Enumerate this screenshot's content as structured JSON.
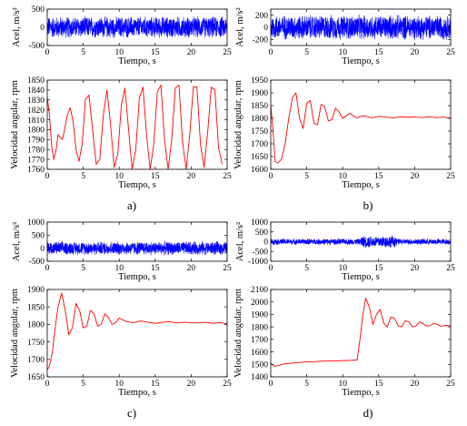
{
  "chart_data": [
    {
      "type": "line",
      "panel": "a",
      "signal": "noise",
      "xlabel": "Tiempo, s",
      "ylabel": "Acel, m/s²",
      "xlim": [
        0,
        25
      ],
      "ylim": [
        -500,
        500
      ],
      "xticks": [
        "0",
        "5",
        "10",
        "15",
        "20",
        "25"
      ],
      "yticks": [
        "-500",
        "0",
        "500"
      ],
      "ytick_values": [
        -500,
        0,
        500
      ],
      "amplitude": 320,
      "color": "#0000ff"
    },
    {
      "type": "line",
      "panel": "a",
      "signal": "speed",
      "xlabel": "Tiempo, s",
      "ylabel": "Velocidad angular, rpm",
      "xlim": [
        0,
        25
      ],
      "ylim": [
        1760,
        1850
      ],
      "xticks": [
        "0",
        "5",
        "10",
        "15",
        "20",
        "25"
      ],
      "yticks": [
        "1760",
        "1770",
        "1780",
        "1790",
        "1800",
        "1810",
        "1820",
        "1830",
        "1840",
        "1850"
      ],
      "ytick_values": [
        1760,
        1770,
        1780,
        1790,
        1800,
        1810,
        1820,
        1830,
        1840,
        1850
      ],
      "color": "#ff0000",
      "x": [
        0,
        0.3,
        0.6,
        0.9,
        1.2,
        1.5,
        1.8,
        2.1,
        2.4,
        2.8,
        3.2,
        3.6,
        4.0,
        4.4,
        4.85,
        5.3,
        5.8,
        6.3,
        6.8,
        7.3,
        7.8,
        8.3,
        8.8,
        9.3,
        9.8,
        10.3,
        10.8,
        11.3,
        11.8,
        12.3,
        12.8,
        13.3,
        13.8,
        14.3,
        14.8,
        15.3,
        15.8,
        16.3,
        16.8,
        17.3,
        17.8,
        18.3,
        18.8,
        19.3,
        19.8,
        20.3,
        20.8,
        21.3,
        21.8,
        22.3,
        22.8,
        23.3,
        23.8,
        24.3
      ],
      "y": [
        1833,
        1815,
        1785,
        1770,
        1778,
        1795,
        1792,
        1790,
        1800,
        1815,
        1822,
        1808,
        1780,
        1768,
        1785,
        1830,
        1835,
        1800,
        1765,
        1770,
        1815,
        1840,
        1805,
        1762,
        1775,
        1825,
        1842,
        1800,
        1760,
        1780,
        1832,
        1843,
        1795,
        1760,
        1785,
        1838,
        1845,
        1790,
        1760,
        1790,
        1842,
        1845,
        1788,
        1760,
        1795,
        1843,
        1843,
        1785,
        1762,
        1798,
        1843,
        1840,
        1782,
        1765
      ]
    },
    {
      "type": "line",
      "panel": "b",
      "signal": "noise",
      "xlabel": "Tiempo, s",
      "ylabel": "Acel, m/s²",
      "xlim": [
        0,
        25
      ],
      "ylim": [
        -300,
        300
      ],
      "xticks": [
        "0",
        "5",
        "10",
        "15",
        "20",
        "25"
      ],
      "yticks": [
        "-200",
        "0",
        "200"
      ],
      "ytick_values": [
        -200,
        0,
        200
      ],
      "amplitude": 220,
      "color": "#0000ff"
    },
    {
      "type": "line",
      "panel": "b",
      "signal": "speed",
      "xlabel": "Tiempo, s",
      "ylabel": "Velocidad angular, rpm",
      "xlim": [
        0,
        25
      ],
      "ylim": [
        1600,
        1950
      ],
      "xticks": [
        "0",
        "5",
        "10",
        "15",
        "20",
        "25"
      ],
      "yticks": [
        "1600",
        "1650",
        "1700",
        "1750",
        "1800",
        "1850",
        "1900",
        "1950"
      ],
      "ytick_values": [
        1600,
        1650,
        1700,
        1750,
        1800,
        1850,
        1900,
        1950
      ],
      "color": "#ff0000",
      "x": [
        0,
        0.3,
        0.6,
        1.0,
        1.5,
        2.0,
        2.5,
        3.0,
        3.5,
        4.0,
        4.5,
        5.0,
        5.5,
        6.0,
        6.5,
        7.0,
        7.5,
        8.0,
        8.5,
        9.0,
        9.5,
        10.0,
        10.5,
        11.0,
        11.5,
        12.0,
        12.5,
        13.0,
        14,
        15,
        16,
        17,
        18,
        19,
        20,
        21,
        22,
        23,
        24,
        25
      ],
      "y": [
        1850,
        1760,
        1630,
        1625,
        1640,
        1700,
        1800,
        1880,
        1900,
        1800,
        1760,
        1860,
        1870,
        1780,
        1775,
        1855,
        1845,
        1790,
        1795,
        1840,
        1825,
        1800,
        1810,
        1820,
        1808,
        1802,
        1808,
        1810,
        1802,
        1808,
        1805,
        1802,
        1806,
        1804,
        1805,
        1803,
        1806,
        1803,
        1805,
        1800
      ]
    },
    {
      "type": "line",
      "panel": "c",
      "signal": "noise",
      "xlabel": "Tiempo, s",
      "ylabel": "Acel, m/s²",
      "xlim": [
        0,
        25
      ],
      "ylim": [
        -500,
        1000
      ],
      "xticks": [
        "0",
        "5",
        "10",
        "15",
        "20",
        "25"
      ],
      "yticks": [
        "-500",
        "0",
        "500",
        "1000"
      ],
      "ytick_values": [
        -500,
        0,
        500,
        1000
      ],
      "amplitude": 280,
      "color": "#0000ff"
    },
    {
      "type": "line",
      "panel": "c",
      "signal": "speed",
      "xlabel": "Tiempo, s",
      "ylabel": "Velocidad angular, rpm",
      "xlim": [
        0,
        25
      ],
      "ylim": [
        1650,
        1900
      ],
      "xticks": [
        "0",
        "5",
        "10",
        "15",
        "20",
        "25"
      ],
      "yticks": [
        "1650",
        "1700",
        "1750",
        "1800",
        "1850",
        "1900"
      ],
      "ytick_values": [
        1650,
        1700,
        1750,
        1800,
        1850,
        1900
      ],
      "color": "#ff0000",
      "x": [
        0,
        0.3,
        0.7,
        1.1,
        1.5,
        2.0,
        2.5,
        3.0,
        3.5,
        4.0,
        4.5,
        5.0,
        5.5,
        6.0,
        6.5,
        7.0,
        7.5,
        8.0,
        8.5,
        9.0,
        9.5,
        10.0,
        11,
        12,
        13,
        14,
        15,
        16,
        17,
        18,
        19,
        20,
        21,
        22,
        23,
        24,
        25
      ],
      "y": [
        1670,
        1680,
        1720,
        1790,
        1850,
        1890,
        1840,
        1770,
        1790,
        1860,
        1840,
        1790,
        1795,
        1840,
        1830,
        1795,
        1800,
        1830,
        1820,
        1800,
        1805,
        1818,
        1808,
        1805,
        1810,
        1806,
        1803,
        1806,
        1808,
        1804,
        1806,
        1805,
        1804,
        1806,
        1803,
        1805,
        1802
      ]
    },
    {
      "type": "line",
      "panel": "d",
      "signal": "noise",
      "xlabel": "Tiempo, s",
      "ylabel": "Acel, m/s²",
      "xlim": [
        0,
        25
      ],
      "ylim": [
        -1000,
        1000
      ],
      "xticks": [
        "0",
        "5",
        "10",
        "15",
        "20",
        "25"
      ],
      "yticks": [
        "-1000",
        "-500",
        "0",
        "500",
        "1000"
      ],
      "ytick_values": [
        -1000,
        -500,
        0,
        500,
        1000
      ],
      "amplitude": 170,
      "burst": [
        12.5,
        17.5,
        340
      ],
      "color": "#0000ff"
    },
    {
      "type": "line",
      "panel": "d",
      "signal": "speed",
      "xlabel": "Tiempo, s",
      "ylabel": "Velocidad angular, rpm",
      "xlim": [
        0,
        25
      ],
      "ylim": [
        1400,
        2100
      ],
      "xticks": [
        "0",
        "5",
        "10",
        "15",
        "20",
        "25"
      ],
      "yticks": [
        "1400",
        "1500",
        "1600",
        "1700",
        "1800",
        "1900",
        "2000",
        "2100"
      ],
      "ytick_values": [
        1400,
        1500,
        1600,
        1700,
        1800,
        1900,
        2000,
        2100
      ],
      "color": "#ff0000",
      "x": [
        0,
        0.5,
        1,
        2,
        3,
        4,
        5,
        6,
        7,
        8,
        9,
        10,
        11,
        12,
        12.4,
        12.8,
        13.2,
        13.7,
        14.2,
        14.7,
        15.2,
        15.7,
        16.2,
        16.7,
        17.2,
        17.7,
        18.2,
        18.7,
        19.2,
        19.7,
        20.2,
        20.7,
        21.2,
        21.7,
        22.2,
        22.7,
        23.2,
        23.7,
        24.2,
        25
      ],
      "y": [
        1510,
        1485,
        1490,
        1505,
        1510,
        1515,
        1520,
        1522,
        1525,
        1527,
        1528,
        1530,
        1532,
        1535,
        1700,
        1900,
        2030,
        1960,
        1820,
        1900,
        1940,
        1830,
        1800,
        1880,
        1870,
        1810,
        1800,
        1850,
        1840,
        1800,
        1810,
        1840,
        1825,
        1805,
        1812,
        1830,
        1818,
        1805,
        1812,
        1810
      ]
    }
  ],
  "panel_labels": {
    "a": "a)",
    "b": "b)",
    "c": "c)",
    "d": "d)"
  }
}
